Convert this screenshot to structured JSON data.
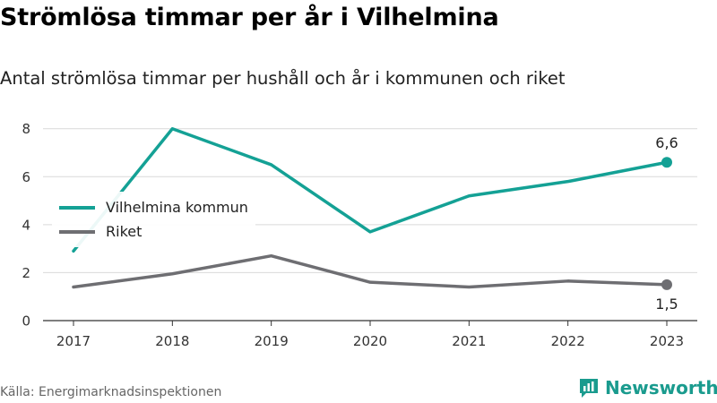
{
  "title": "Strömlösa timmar per år i Vilhelmina",
  "subtitle": "Antal strömlösa timmar per hushåll och år i kommunen och riket",
  "source": "Källa: Energimarknadsinspektionen",
  "brand": "Newsworthy",
  "colors": {
    "vilhelmina": "#14a195",
    "riket": "#6e6e72",
    "grid": "#d9d9d9",
    "brand": "#1a9b8e"
  },
  "chart_data": {
    "type": "line",
    "x": [
      "2017",
      "2018",
      "2019",
      "2020",
      "2021",
      "2022",
      "2023"
    ],
    "yticks": [
      "0",
      "2",
      "4",
      "6",
      "8"
    ],
    "ylim": [
      0,
      8.7
    ],
    "grid": true,
    "legend_placement": "left",
    "series": [
      {
        "name": "Vilhelmina kommun",
        "values": [
          2.9,
          8.0,
          6.5,
          3.7,
          5.2,
          5.8,
          6.6
        ],
        "end_label": "6,6"
      },
      {
        "name": "Riket",
        "values": [
          1.4,
          1.95,
          2.7,
          1.6,
          1.4,
          1.65,
          1.5
        ],
        "end_label": "1,5"
      }
    ]
  }
}
